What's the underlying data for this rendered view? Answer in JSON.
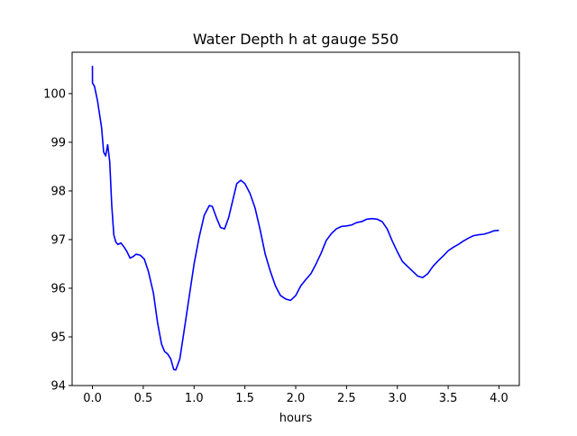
{
  "chart_data": {
    "type": "line",
    "title": "Water Depth h at gauge 550",
    "xlabel": "hours",
    "ylabel": "",
    "xlim": [
      -0.2,
      4.2
    ],
    "ylim": [
      94,
      100.85
    ],
    "xticks": [
      0.0,
      0.5,
      1.0,
      1.5,
      2.0,
      2.5,
      3.0,
      3.5,
      4.0
    ],
    "xtick_labels": [
      "0.0",
      "0.5",
      "1.0",
      "1.5",
      "2.0",
      "2.5",
      "3.0",
      "3.5",
      "4.0"
    ],
    "yticks": [
      94,
      95,
      96,
      97,
      98,
      99,
      100
    ],
    "ytick_labels": [
      "94",
      "95",
      "96",
      "97",
      "98",
      "99",
      "100"
    ],
    "grid": false,
    "legend": "none",
    "line_color": "#0000ff",
    "series": [
      {
        "x": [
          0.0,
          0.0,
          0.0,
          0.02,
          0.05,
          0.09,
          0.11,
          0.13,
          0.15,
          0.17,
          0.19,
          0.21,
          0.23,
          0.25,
          0.28,
          0.31,
          0.34,
          0.37,
          0.4,
          0.43,
          0.47,
          0.51,
          0.55,
          0.6,
          0.64,
          0.68,
          0.71,
          0.74,
          0.77,
          0.8,
          0.82,
          0.86,
          0.9,
          0.95,
          1.0,
          1.05,
          1.1,
          1.15,
          1.18,
          1.22,
          1.26,
          1.3,
          1.34,
          1.38,
          1.42,
          1.46,
          1.5,
          1.55,
          1.6,
          1.65,
          1.7,
          1.75,
          1.8,
          1.85,
          1.9,
          1.95,
          2.0,
          2.05,
          2.1,
          2.15,
          2.2,
          2.25,
          2.3,
          2.35,
          2.4,
          2.45,
          2.5,
          2.55,
          2.6,
          2.65,
          2.7,
          2.75,
          2.8,
          2.85,
          2.9,
          2.95,
          3.0,
          3.05,
          3.1,
          3.15,
          3.2,
          3.25,
          3.3,
          3.35,
          3.4,
          3.45,
          3.5,
          3.55,
          3.6,
          3.65,
          3.7,
          3.75,
          3.8,
          3.85,
          3.9,
          3.95,
          4.0
        ],
        "y": [
          100.57,
          100.23,
          100.22,
          100.15,
          99.85,
          99.3,
          98.8,
          98.72,
          98.95,
          98.6,
          97.7,
          97.1,
          96.95,
          96.9,
          96.93,
          96.85,
          96.75,
          96.62,
          96.65,
          96.7,
          96.68,
          96.6,
          96.35,
          95.9,
          95.3,
          94.85,
          94.7,
          94.65,
          94.55,
          94.33,
          94.32,
          94.55,
          95.1,
          95.8,
          96.5,
          97.05,
          97.5,
          97.7,
          97.68,
          97.45,
          97.25,
          97.22,
          97.45,
          97.8,
          98.15,
          98.22,
          98.15,
          97.95,
          97.65,
          97.2,
          96.7,
          96.35,
          96.05,
          95.85,
          95.78,
          95.75,
          95.85,
          96.05,
          96.18,
          96.3,
          96.5,
          96.72,
          96.98,
          97.12,
          97.22,
          97.27,
          97.28,
          97.3,
          97.35,
          97.37,
          97.42,
          97.43,
          97.42,
          97.37,
          97.22,
          96.97,
          96.75,
          96.55,
          96.45,
          96.35,
          96.25,
          96.22,
          96.3,
          96.45,
          96.56,
          96.66,
          96.77,
          96.84,
          96.9,
          96.97,
          97.03,
          97.08,
          97.1,
          97.11,
          97.14,
          97.18,
          97.19
        ]
      }
    ]
  }
}
